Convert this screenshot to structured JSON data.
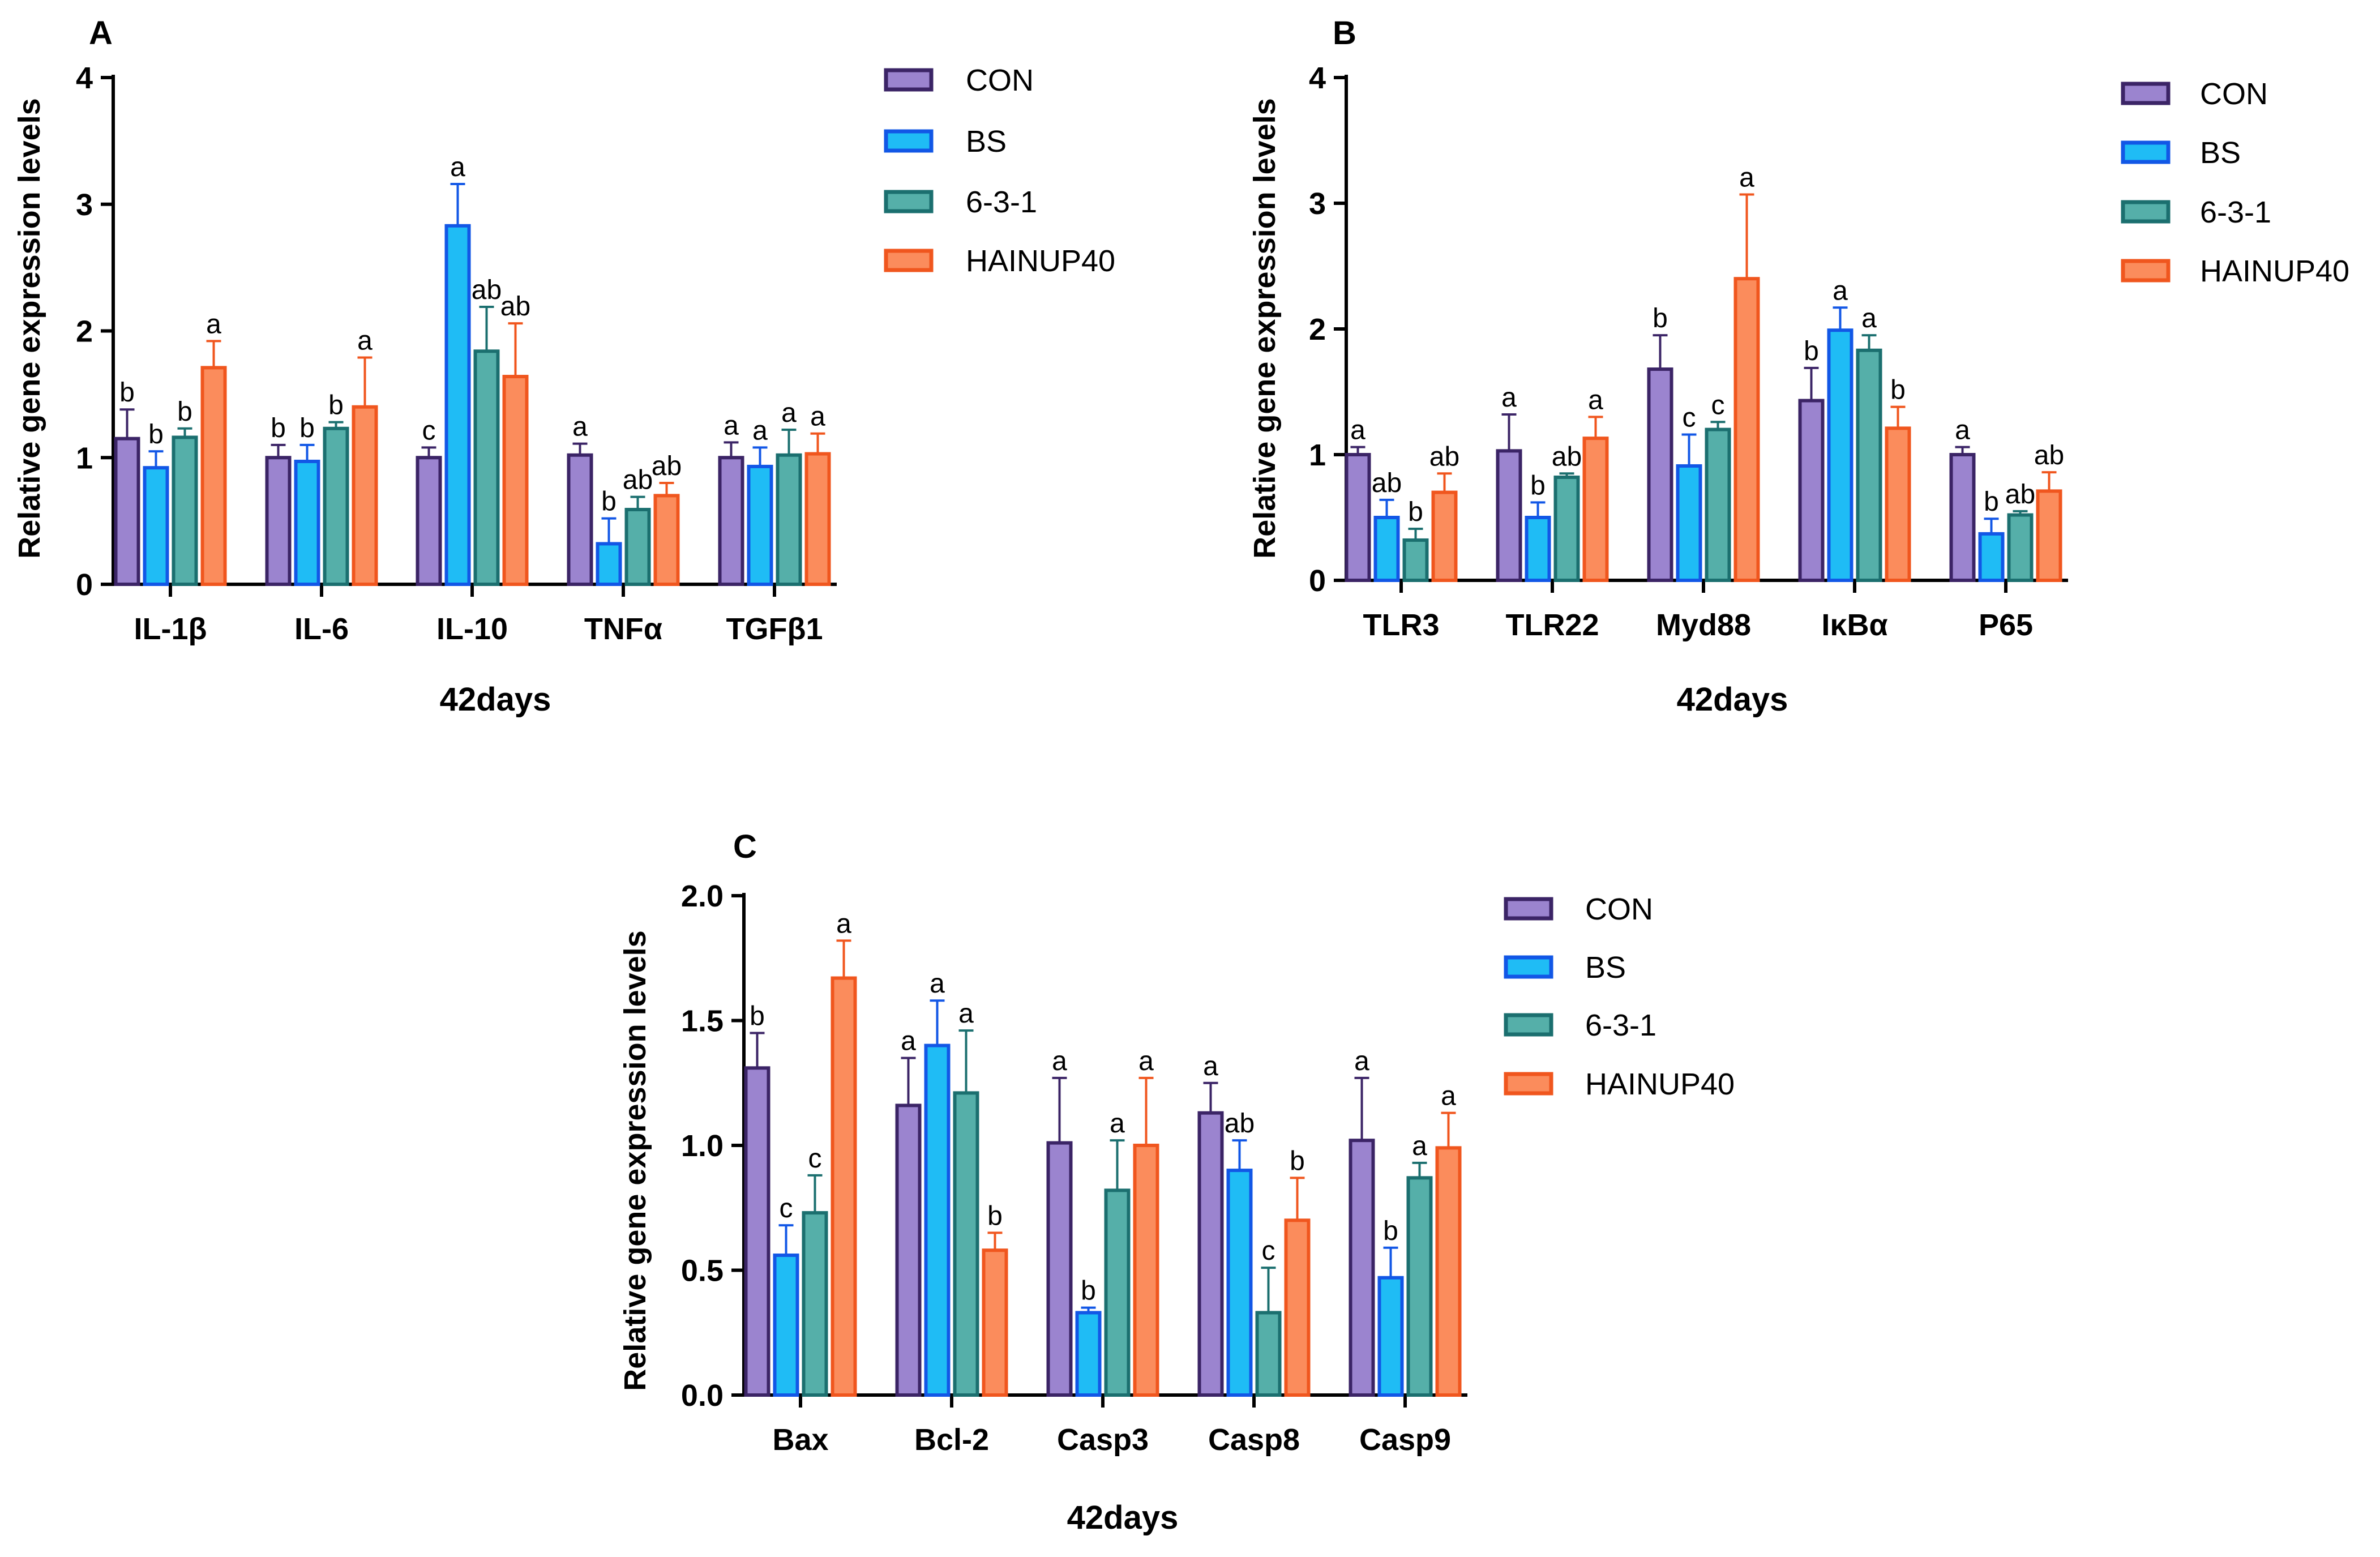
{
  "legend": [
    "CON",
    "BS",
    "6-3-1",
    "HAINUP40"
  ],
  "colors": {
    "series_fill": [
      "#9b84cf",
      "#1fbcf5",
      "#55afa9",
      "#fb8c5c"
    ],
    "series_stroke": [
      "#3b2466",
      "#1257e6",
      "#1b6f6f",
      "#f0561e"
    ],
    "axis": "#000000"
  },
  "chart_data": [
    {
      "panel": "A",
      "type": "bar",
      "xlabel": "42days",
      "ylabel": "Relative gene expression levels",
      "ylim": [
        0,
        4
      ],
      "yticks": [
        "0",
        "1",
        "2",
        "3",
        "4"
      ],
      "ytick_values": [
        0,
        1,
        2,
        3,
        4
      ],
      "categories": [
        "IL-1β",
        "IL-6",
        "IL-10",
        "TNFα",
        "TGFβ1"
      ],
      "series": [
        {
          "name": "CON",
          "values": [
            1.15,
            1.0,
            1.0,
            1.02,
            1.0
          ],
          "errors": [
            0.23,
            0.1,
            0.08,
            0.09,
            0.12
          ],
          "labels": [
            "b",
            "b",
            "c",
            "a",
            "a"
          ]
        },
        {
          "name": "BS",
          "values": [
            0.92,
            0.97,
            2.83,
            0.32,
            0.93
          ],
          "errors": [
            0.13,
            0.13,
            0.33,
            0.2,
            0.15
          ],
          "labels": [
            "b",
            "b",
            "a",
            "b",
            "a"
          ]
        },
        {
          "name": "6-3-1",
          "values": [
            1.16,
            1.23,
            1.84,
            0.59,
            1.02
          ],
          "errors": [
            0.07,
            0.05,
            0.35,
            0.1,
            0.2
          ],
          "labels": [
            "b",
            "b",
            "ab",
            "ab",
            "a"
          ]
        },
        {
          "name": "HAINUP40",
          "values": [
            1.71,
            1.4,
            1.64,
            0.7,
            1.03
          ],
          "errors": [
            0.21,
            0.39,
            0.42,
            0.1,
            0.16
          ],
          "labels": [
            "a",
            "a",
            "ab",
            "ab",
            "a"
          ]
        }
      ]
    },
    {
      "panel": "B",
      "type": "bar",
      "xlabel": "42days",
      "ylabel": "Relative gene expression levels",
      "ylim": [
        0,
        4
      ],
      "yticks": [
        "0",
        "1",
        "2",
        "3",
        "4"
      ],
      "ytick_values": [
        0,
        1,
        2,
        3,
        4
      ],
      "categories": [
        "TLR3",
        "TLR22",
        "Myd88",
        "IκBα",
        "P65"
      ],
      "series": [
        {
          "name": "CON",
          "values": [
            1.0,
            1.03,
            1.68,
            1.43,
            1.0
          ],
          "errors": [
            0.06,
            0.29,
            0.27,
            0.26,
            0.06
          ],
          "labels": [
            "a",
            "a",
            "b",
            "b",
            "a"
          ]
        },
        {
          "name": "BS",
          "values": [
            0.5,
            0.5,
            0.91,
            1.99,
            0.37
          ],
          "errors": [
            0.14,
            0.12,
            0.25,
            0.18,
            0.12
          ],
          "labels": [
            "ab",
            "b",
            "c",
            "a",
            "b"
          ]
        },
        {
          "name": "6-3-1",
          "values": [
            0.32,
            0.82,
            1.2,
            1.83,
            0.52
          ],
          "errors": [
            0.09,
            0.03,
            0.06,
            0.12,
            0.03
          ],
          "labels": [
            "b",
            "ab",
            "c",
            "a",
            "ab"
          ]
        },
        {
          "name": "HAINUP40",
          "values": [
            0.7,
            1.13,
            2.4,
            1.21,
            0.71
          ],
          "errors": [
            0.15,
            0.17,
            0.67,
            0.17,
            0.15
          ],
          "labels": [
            "ab",
            "a",
            "a",
            "b",
            "ab"
          ]
        }
      ]
    },
    {
      "panel": "C",
      "type": "bar",
      "xlabel": "42days",
      "ylabel": "Relative gene expression levels",
      "ylim": [
        0,
        2
      ],
      "yticks": [
        "0.0",
        "0.5",
        "1.0",
        "1.5",
        "2.0"
      ],
      "ytick_values": [
        0,
        0.5,
        1.0,
        1.5,
        2.0
      ],
      "categories": [
        "Bax",
        "Bcl-2",
        "Casp3",
        "Casp8",
        "Casp9"
      ],
      "series": [
        {
          "name": "CON",
          "values": [
            1.31,
            1.16,
            1.01,
            1.13,
            1.02
          ],
          "errors": [
            0.14,
            0.19,
            0.26,
            0.12,
            0.25
          ],
          "labels": [
            "b",
            "a",
            "a",
            "a",
            "a"
          ]
        },
        {
          "name": "BS",
          "values": [
            0.56,
            1.4,
            0.33,
            0.9,
            0.47
          ],
          "errors": [
            0.12,
            0.18,
            0.02,
            0.12,
            0.12
          ],
          "labels": [
            "c",
            "a",
            "b",
            "ab",
            "b"
          ]
        },
        {
          "name": "6-3-1",
          "values": [
            0.73,
            1.21,
            0.82,
            0.33,
            0.87
          ],
          "errors": [
            0.15,
            0.25,
            0.2,
            0.18,
            0.06
          ],
          "labels": [
            "c",
            "a",
            "a",
            "c",
            "a"
          ]
        },
        {
          "name": "HAINUP40",
          "values": [
            1.67,
            0.58,
            1.0,
            0.7,
            0.99
          ],
          "errors": [
            0.15,
            0.07,
            0.27,
            0.17,
            0.14
          ],
          "labels": [
            "a",
            "b",
            "a",
            "b",
            "a"
          ]
        }
      ]
    }
  ]
}
